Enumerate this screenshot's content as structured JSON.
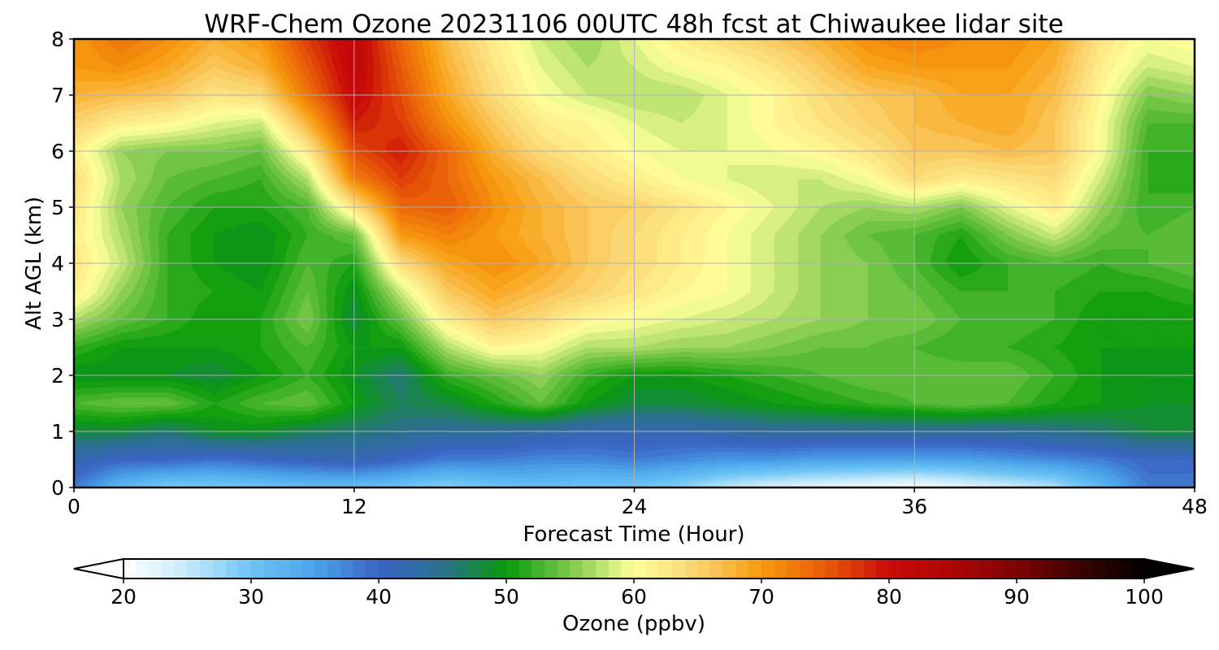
{
  "chart_data": {
    "type": "heatmap",
    "title": "WRF-Chem Ozone  20231106 00UTC 48h fcst at Chiwaukee lidar site",
    "xlabel": "Forecast Time (Hour)",
    "ylabel": "Alt AGL (km)",
    "xlim": [
      0,
      48
    ],
    "ylim": [
      0,
      8
    ],
    "x_ticks": [
      0,
      12,
      24,
      36,
      48
    ],
    "y_ticks": [
      0,
      1,
      2,
      3,
      4,
      5,
      6,
      7,
      8
    ],
    "grid": true,
    "x": [
      0,
      2,
      4,
      6,
      8,
      10,
      12,
      14,
      16,
      18,
      20,
      22,
      24,
      26,
      28,
      30,
      32,
      34,
      36,
      38,
      40,
      42,
      44,
      46,
      48
    ],
    "y": [
      0,
      0.5,
      1,
      1.5,
      2,
      2.5,
      3,
      3.5,
      4,
      4.5,
      5,
      5.5,
      6,
      6.5,
      7,
      7.5,
      8
    ],
    "z": [
      [
        38,
        32,
        29,
        29,
        30,
        31,
        31,
        30,
        28,
        30,
        31,
        30,
        30,
        28,
        25,
        23,
        22,
        21,
        20,
        22,
        24,
        26,
        32,
        38,
        38
      ],
      [
        42,
        40,
        40,
        39,
        40,
        41,
        42,
        40,
        38,
        38,
        37,
        37,
        38,
        37,
        36,
        36,
        35,
        35,
        35,
        35,
        36,
        37,
        38,
        40,
        40
      ],
      [
        48,
        48,
        46,
        49,
        49,
        47,
        46,
        45,
        44,
        44,
        43,
        42,
        42,
        42,
        43,
        44,
        44,
        44,
        44,
        44,
        44,
        45,
        46,
        48,
        48
      ],
      [
        53,
        54,
        54,
        51,
        53,
        54,
        50,
        47,
        48,
        51,
        54,
        50,
        48,
        48,
        49,
        50,
        51,
        52,
        53,
        54,
        53,
        51,
        50,
        49,
        49
      ],
      [
        49,
        49,
        49,
        48,
        50,
        52,
        49,
        46,
        52,
        54,
        56,
        52,
        50,
        50,
        51,
        52,
        53,
        54,
        54,
        54,
        54,
        52,
        50,
        49,
        49
      ],
      [
        52,
        50,
        50,
        50,
        51,
        53,
        50,
        50,
        57,
        61,
        60,
        57,
        57,
        56,
        56,
        55,
        54,
        54,
        53,
        52,
        52,
        51,
        50,
        50,
        50
      ],
      [
        57,
        54,
        52,
        50,
        51,
        55,
        48,
        54,
        62,
        66,
        64,
        61,
        60,
        59,
        58,
        57,
        56,
        55,
        55,
        53,
        53,
        52,
        50,
        50,
        50
      ],
      [
        62,
        56,
        52,
        51,
        50,
        54,
        49,
        58,
        66,
        69,
        67,
        65,
        63,
        61,
        60,
        58,
        56,
        55,
        54,
        52,
        52,
        52,
        51,
        51,
        52
      ],
      [
        63,
        58,
        52,
        50,
        49,
        53,
        51,
        64,
        69,
        71,
        69,
        66,
        64,
        62,
        60,
        58,
        56,
        55,
        53,
        50,
        52,
        53,
        52,
        53,
        54
      ],
      [
        62,
        57,
        52,
        50,
        49,
        52,
        54,
        70,
        72,
        70,
        68,
        66,
        64,
        62,
        60,
        58,
        56,
        54,
        53,
        51,
        55,
        58,
        54,
        53,
        54
      ],
      [
        63,
        56,
        53,
        51,
        51,
        53,
        63,
        74,
        75,
        71,
        68,
        66,
        65,
        63,
        61,
        59,
        57,
        56,
        57,
        55,
        59,
        62,
        56,
        52,
        53
      ],
      [
        64,
        57,
        54,
        53,
        52,
        57,
        72,
        77,
        74,
        70,
        67,
        64,
        62,
        60,
        59,
        58,
        58,
        60,
        64,
        62,
        63,
        64,
        58,
        52,
        51
      ],
      [
        62,
        56,
        55,
        55,
        54,
        62,
        76,
        79,
        74,
        68,
        64,
        62,
        60,
        59,
        59,
        60,
        61,
        63,
        66,
        66,
        67,
        66,
        60,
        52,
        52
      ],
      [
        65,
        62,
        61,
        59,
        58,
        68,
        79,
        77,
        71,
        66,
        62,
        61,
        59,
        58,
        59,
        61,
        63,
        65,
        67,
        68,
        69,
        66,
        60,
        53,
        53
      ],
      [
        68,
        67,
        66,
        63,
        64,
        73,
        81,
        76,
        69,
        64,
        60,
        58,
        57,
        57,
        59,
        61,
        64,
        66,
        67,
        69,
        69,
        67,
        61,
        55,
        56
      ],
      [
        70,
        71,
        69,
        66,
        68,
        75,
        82,
        75,
        68,
        63,
        59,
        57,
        58,
        60,
        61,
        63,
        66,
        69,
        70,
        70,
        70,
        68,
        62,
        58,
        59
      ],
      [
        70,
        73,
        71,
        68,
        70,
        77,
        82,
        74,
        67,
        62,
        58,
        56,
        59,
        62,
        64,
        66,
        68,
        71,
        72,
        71,
        71,
        69,
        63,
        60,
        61
      ]
    ],
    "colorbar": {
      "label": "Ozone  (ppbv)",
      "min": 20,
      "max": 100,
      "ticks": [
        20,
        30,
        40,
        50,
        60,
        70,
        80,
        90,
        100
      ],
      "extend": "both",
      "stops": [
        {
          "v": 20,
          "c": "#ffffff"
        },
        {
          "v": 25,
          "c": "#c6e9fb"
        },
        {
          "v": 30,
          "c": "#6dc4f5"
        },
        {
          "v": 35,
          "c": "#4aa3ea"
        },
        {
          "v": 40,
          "c": "#3a64c4"
        },
        {
          "v": 45,
          "c": "#2a6f8f"
        },
        {
          "v": 50,
          "c": "#079a0a"
        },
        {
          "v": 55,
          "c": "#7cc94a"
        },
        {
          "v": 60,
          "c": "#ffff9c"
        },
        {
          "v": 65,
          "c": "#fbd36f"
        },
        {
          "v": 70,
          "c": "#f89a0d"
        },
        {
          "v": 75,
          "c": "#e85b08"
        },
        {
          "v": 80,
          "c": "#c90a08"
        },
        {
          "v": 85,
          "c": "#ad0606"
        },
        {
          "v": 90,
          "c": "#7d0303"
        },
        {
          "v": 95,
          "c": "#3c0101"
        },
        {
          "v": 100,
          "c": "#000000"
        }
      ]
    }
  }
}
